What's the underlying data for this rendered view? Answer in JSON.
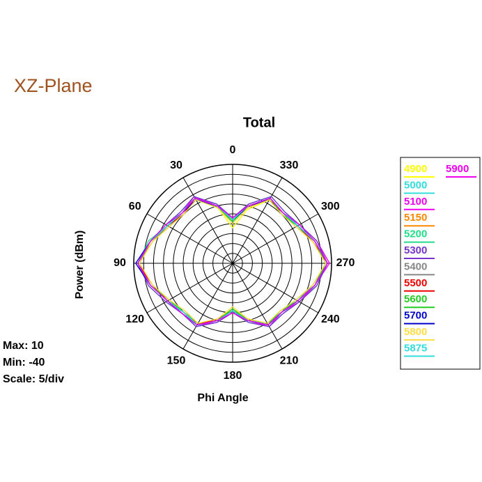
{
  "chart_data": {
    "type": "polar",
    "heading": "XZ-Plane",
    "title": "Total",
    "r_label": "Power  (dBm)",
    "theta_label": "Phi Angle",
    "info": [
      "Max: 10",
      "Min: -40",
      "Scale: 5/div"
    ],
    "rlim": [
      -40,
      10
    ],
    "rticks": [
      -35,
      -30,
      -25,
      -20,
      -15,
      -10,
      -5,
      0,
      5,
      10
    ],
    "theta_ticks": [
      0,
      30,
      60,
      90,
      120,
      150,
      180,
      210,
      240,
      270,
      300,
      330
    ],
    "theta_direction": "counterclockwise",
    "theta_zero": "top",
    "theta": [
      0,
      15,
      30,
      45,
      60,
      75,
      90,
      105,
      120,
      135,
      150,
      165,
      180,
      195,
      210,
      225,
      240,
      255,
      270,
      285,
      300,
      315,
      330,
      345
    ],
    "series": [
      {
        "name": "4900",
        "color": "#ffff00",
        "values": [
          -22,
          -11,
          -3,
          -4,
          -3,
          2,
          7,
          2,
          -2,
          -5,
          -4,
          -11,
          -17,
          -11,
          -4,
          -5,
          -3,
          2,
          7,
          2,
          -3,
          -4,
          -3,
          -12
        ]
      },
      {
        "name": "5000",
        "color": "#33dddd",
        "values": [
          -18,
          -9,
          -2,
          -3,
          -2,
          3,
          8,
          4,
          -1,
          -5,
          -3,
          -10,
          -16,
          -9,
          -4,
          -4,
          -2,
          4,
          8,
          3,
          -2,
          -3,
          -1,
          -9
        ]
      },
      {
        "name": "5100",
        "color": "#ee00ee",
        "values": [
          -17,
          -10,
          -1,
          -4,
          -1,
          3,
          9,
          3,
          -2,
          -4,
          -4,
          -9,
          -15,
          -10,
          -3,
          -5,
          -1,
          3,
          9,
          4,
          -1,
          -4,
          -2,
          -10
        ]
      },
      {
        "name": "5150",
        "color": "#ff8800",
        "values": [
          -18,
          -11,
          -2,
          -5,
          -2,
          2,
          8,
          3,
          -3,
          -5,
          -5,
          -10,
          -16,
          -11,
          -4,
          -6,
          -2,
          3,
          8,
          3,
          -2,
          -5,
          -2,
          -11
        ]
      },
      {
        "name": "5200",
        "color": "#22dd88",
        "values": [
          -19,
          -10,
          -3,
          -4,
          -2,
          4,
          8,
          3,
          -2,
          -6,
          -4,
          -10,
          -17,
          -10,
          -5,
          -5,
          -3,
          3,
          7,
          3,
          -3,
          -4,
          -3,
          -10
        ]
      },
      {
        "name": "5300",
        "color": "#7733cc",
        "values": [
          -17,
          -9,
          -1,
          -3,
          -1,
          3,
          8,
          4,
          -1,
          -4,
          -3,
          -9,
          -15,
          -9,
          -3,
          -4,
          -1,
          4,
          8,
          4,
          -1,
          -3,
          -1,
          -9
        ]
      },
      {
        "name": "5400",
        "color": "#888888",
        "values": [
          -18,
          -10,
          -2,
          -4,
          -3,
          3,
          7,
          3,
          -2,
          -5,
          -4,
          -10,
          -16,
          -10,
          -4,
          -5,
          -2,
          2,
          8,
          3,
          -2,
          -4,
          -2,
          -10
        ]
      },
      {
        "name": "5500",
        "color": "#ee0000",
        "values": [
          -18,
          -10,
          -2,
          -5,
          -2,
          3,
          8,
          2,
          -2,
          -5,
          -4,
          -11,
          -16,
          -10,
          -4,
          -5,
          -2,
          3,
          8,
          2,
          -2,
          -4,
          -3,
          -10
        ]
      },
      {
        "name": "5600",
        "color": "#22cc22",
        "values": [
          -19,
          -11,
          -2,
          -4,
          -2,
          3,
          8,
          3,
          -3,
          -5,
          -4,
          -10,
          -17,
          -10,
          -4,
          -6,
          -2,
          3,
          7,
          3,
          -2,
          -5,
          -2,
          -10
        ]
      },
      {
        "name": "5700",
        "color": "#0000cc",
        "values": [
          -18,
          -10,
          -3,
          -4,
          -2,
          3,
          9,
          3,
          -2,
          -4,
          -4,
          -10,
          -16,
          -10,
          -4,
          -5,
          -2,
          3,
          8,
          3,
          -2,
          -4,
          -2,
          -11
        ]
      },
      {
        "name": "5800",
        "color": "#ffdd44",
        "values": [
          -20,
          -11,
          -3,
          -5,
          -3,
          2,
          7,
          2,
          -3,
          -6,
          -5,
          -11,
          -18,
          -11,
          -5,
          -6,
          -3,
          2,
          7,
          2,
          -3,
          -5,
          -3,
          -11
        ]
      },
      {
        "name": "5875",
        "color": "#33dddd",
        "values": [
          -18,
          -10,
          -2,
          -4,
          -2,
          3,
          8,
          3,
          -2,
          -5,
          -4,
          -10,
          -16,
          -10,
          -4,
          -5,
          -2,
          3,
          8,
          3,
          -2,
          -4,
          -2,
          -10
        ]
      },
      {
        "name": "5900",
        "color": "#ee00ee",
        "values": [
          -17,
          -10,
          -2,
          -4,
          -1,
          3,
          8,
          3,
          -2,
          -4,
          -4,
          -10,
          -15,
          -10,
          -4,
          -5,
          -2,
          3,
          8,
          3,
          -1,
          -4,
          -2,
          -10
        ]
      }
    ]
  }
}
